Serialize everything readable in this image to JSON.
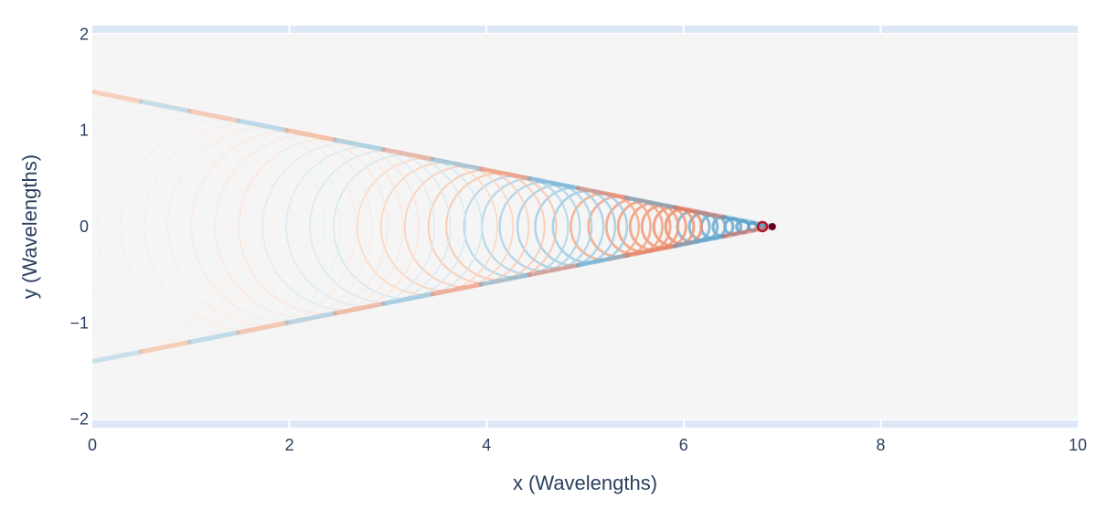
{
  "chart_data": {
    "type": "heatmap",
    "title": "",
    "xlabel": "x (Wavelengths)",
    "ylabel": "y (Wavelengths)",
    "xlim": [
      0,
      10
    ],
    "ylim": [
      -2.05,
      2.05
    ],
    "x_ticks": [
      0,
      2,
      4,
      6,
      8,
      10
    ],
    "x_tick_labels": [
      "0",
      "2",
      "4",
      "6",
      "8",
      "10"
    ],
    "y_ticks": [
      -2,
      -1,
      0,
      1,
      2
    ],
    "y_tick_labels": [
      "−2",
      "−1",
      "0",
      "1",
      "2"
    ],
    "grid": true,
    "source": {
      "x": 6.9,
      "y": 0
    },
    "mach_cone_half_width_at_x0": 1.4,
    "wavefront_centers_x": [
      6.9,
      6.8,
      6.7,
      6.6,
      6.5,
      6.4,
      6.3,
      6.2,
      6.1,
      6.0,
      5.9,
      5.8,
      5.7,
      5.6,
      5.5,
      5.35,
      5.2,
      5.05,
      4.9,
      4.75,
      4.6,
      4.45,
      4.3,
      4.15,
      4.0,
      3.8,
      3.6,
      3.4,
      3.2,
      3.0,
      2.8,
      2.6,
      2.4,
      2.2,
      2.0,
      1.8,
      1.6,
      1.4,
      1.2,
      1.0,
      0.8,
      0.6,
      0.4,
      0.2,
      0.0
    ],
    "colorscale": [
      "#053061",
      "#2166ac",
      "#4393c3",
      "#92c5de",
      "#d1e5f0",
      "#f7f7f7",
      "#fddbc7",
      "#f4a582",
      "#d6604d",
      "#b2182b",
      "#67001f"
    ],
    "background_color": "#f5f5f5",
    "grid_color": "#dde8f6"
  }
}
